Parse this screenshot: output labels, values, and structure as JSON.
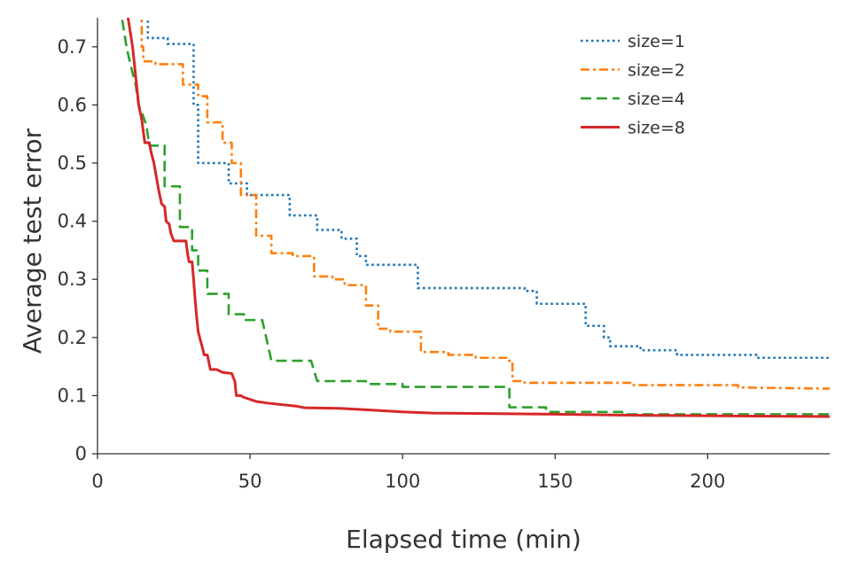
{
  "chart_data": {
    "type": "line",
    "title": "",
    "xlabel": "Elapsed time (min)",
    "ylabel": "Average test error",
    "xlim": [
      0,
      240
    ],
    "ylim": [
      0,
      0.75
    ],
    "xticks": [
      0,
      50,
      100,
      150,
      200
    ],
    "xtick_labels": [
      "0",
      "50",
      "100",
      "150",
      "200"
    ],
    "yticks": [
      0,
      0.1,
      0.2,
      0.3,
      0.4,
      0.5,
      0.6,
      0.7
    ],
    "ytick_labels": [
      "0",
      "0.1",
      "0.2",
      "0.3",
      "0.4",
      "0.5",
      "0.6",
      "0.7"
    ],
    "grid": false,
    "legend_position": "top-right",
    "series": [
      {
        "name": "size=1",
        "color": "#1f77b4",
        "dash": "dotted",
        "points": [
          [
            16.5,
            0.8
          ],
          [
            16.5,
            0.715
          ],
          [
            23,
            0.715
          ],
          [
            23,
            0.705
          ],
          [
            31.5,
            0.705
          ],
          [
            31.5,
            0.6
          ],
          [
            33,
            0.6
          ],
          [
            33,
            0.5
          ],
          [
            43,
            0.5
          ],
          [
            43,
            0.465
          ],
          [
            49,
            0.465
          ],
          [
            49,
            0.445
          ],
          [
            63,
            0.445
          ],
          [
            63,
            0.41
          ],
          [
            72,
            0.41
          ],
          [
            72,
            0.385
          ],
          [
            80,
            0.385
          ],
          [
            80,
            0.37
          ],
          [
            85,
            0.37
          ],
          [
            85,
            0.34
          ],
          [
            88,
            0.34
          ],
          [
            88,
            0.325
          ],
          [
            105,
            0.325
          ],
          [
            105,
            0.285
          ],
          [
            140,
            0.285
          ],
          [
            140,
            0.28
          ],
          [
            144,
            0.28
          ],
          [
            144,
            0.258
          ],
          [
            160,
            0.258
          ],
          [
            160,
            0.22
          ],
          [
            166,
            0.22
          ],
          [
            166,
            0.2
          ],
          [
            168,
            0.2
          ],
          [
            168,
            0.185
          ],
          [
            178,
            0.185
          ],
          [
            178,
            0.178
          ],
          [
            190,
            0.178
          ],
          [
            190,
            0.17
          ],
          [
            216,
            0.17
          ],
          [
            216,
            0.165
          ],
          [
            240,
            0.165
          ]
        ]
      },
      {
        "name": "size=2",
        "color": "#ff7f0e",
        "dash": "dashdot",
        "points": [
          [
            14.5,
            0.8
          ],
          [
            14.5,
            0.7
          ],
          [
            15,
            0.7
          ],
          [
            15,
            0.675
          ],
          [
            19,
            0.675
          ],
          [
            19,
            0.67
          ],
          [
            28,
            0.67
          ],
          [
            28,
            0.635
          ],
          [
            33,
            0.635
          ],
          [
            33,
            0.615
          ],
          [
            36,
            0.615
          ],
          [
            36,
            0.57
          ],
          [
            41,
            0.57
          ],
          [
            41,
            0.535
          ],
          [
            44,
            0.535
          ],
          [
            44,
            0.5
          ],
          [
            47,
            0.5
          ],
          [
            47,
            0.445
          ],
          [
            52,
            0.445
          ],
          [
            52,
            0.375
          ],
          [
            57,
            0.375
          ],
          [
            57,
            0.345
          ],
          [
            64,
            0.345
          ],
          [
            64,
            0.34
          ],
          [
            71,
            0.34
          ],
          [
            71,
            0.305
          ],
          [
            77,
            0.305
          ],
          [
            77,
            0.3
          ],
          [
            81,
            0.3
          ],
          [
            81,
            0.29
          ],
          [
            88,
            0.29
          ],
          [
            88,
            0.255
          ],
          [
            92,
            0.255
          ],
          [
            92,
            0.215
          ],
          [
            96,
            0.215
          ],
          [
            96,
            0.21
          ],
          [
            106,
            0.21
          ],
          [
            106,
            0.175
          ],
          [
            115,
            0.175
          ],
          [
            115,
            0.17
          ],
          [
            124,
            0.17
          ],
          [
            124,
            0.165
          ],
          [
            134,
            0.165
          ],
          [
            134,
            0.16
          ],
          [
            136,
            0.16
          ],
          [
            136,
            0.125
          ],
          [
            140,
            0.125
          ],
          [
            140,
            0.122
          ],
          [
            175,
            0.122
          ],
          [
            175,
            0.118
          ],
          [
            210,
            0.118
          ],
          [
            210,
            0.114
          ],
          [
            240,
            0.112
          ]
        ]
      },
      {
        "name": "size=4",
        "color": "#2ca02c",
        "dash": "dashed",
        "points": [
          [
            6,
            0.8
          ],
          [
            8,
            0.75
          ],
          [
            9.5,
            0.7
          ],
          [
            11,
            0.665
          ],
          [
            12.5,
            0.635
          ],
          [
            13.5,
            0.6
          ],
          [
            15,
            0.58
          ],
          [
            16,
            0.565
          ],
          [
            17,
            0.53
          ],
          [
            22,
            0.53
          ],
          [
            22,
            0.46
          ],
          [
            27,
            0.46
          ],
          [
            27,
            0.39
          ],
          [
            31,
            0.39
          ],
          [
            31,
            0.35
          ],
          [
            33,
            0.35
          ],
          [
            33,
            0.315
          ],
          [
            36,
            0.315
          ],
          [
            36,
            0.275
          ],
          [
            43,
            0.275
          ],
          [
            43,
            0.24
          ],
          [
            48,
            0.24
          ],
          [
            48,
            0.23
          ],
          [
            54,
            0.23
          ],
          [
            57,
            0.16
          ],
          [
            70,
            0.16
          ],
          [
            72,
            0.125
          ],
          [
            88,
            0.125
          ],
          [
            88,
            0.12
          ],
          [
            100,
            0.12
          ],
          [
            100,
            0.115
          ],
          [
            135,
            0.115
          ],
          [
            135,
            0.08
          ],
          [
            147,
            0.08
          ],
          [
            147,
            0.072
          ],
          [
            172,
            0.072
          ],
          [
            172,
            0.068
          ],
          [
            240,
            0.068
          ]
        ]
      },
      {
        "name": "size=8",
        "color": "#d62728",
        "dash": "solid",
        "points": [
          [
            10,
            0.75
          ],
          [
            11.5,
            0.7
          ],
          [
            12.5,
            0.65
          ],
          [
            13.5,
            0.6
          ],
          [
            14.5,
            0.575
          ],
          [
            15.5,
            0.535
          ],
          [
            17,
            0.535
          ],
          [
            17.5,
            0.52
          ],
          [
            18.5,
            0.5
          ],
          [
            19,
            0.485
          ],
          [
            20,
            0.455
          ],
          [
            21,
            0.43
          ],
          [
            22,
            0.425
          ],
          [
            22.5,
            0.4
          ],
          [
            23.5,
            0.395
          ],
          [
            24,
            0.38
          ],
          [
            25,
            0.366
          ],
          [
            29,
            0.366
          ],
          [
            29.5,
            0.345
          ],
          [
            30,
            0.33
          ],
          [
            31,
            0.33
          ],
          [
            31.5,
            0.3
          ],
          [
            32,
            0.265
          ],
          [
            32.5,
            0.235
          ],
          [
            33,
            0.21
          ],
          [
            34,
            0.19
          ],
          [
            35,
            0.17
          ],
          [
            36,
            0.17
          ],
          [
            37,
            0.145
          ],
          [
            39,
            0.145
          ],
          [
            41,
            0.14
          ],
          [
            44,
            0.138
          ],
          [
            45,
            0.125
          ],
          [
            45.5,
            0.1
          ],
          [
            47,
            0.1
          ],
          [
            48,
            0.097
          ],
          [
            52,
            0.09
          ],
          [
            56,
            0.087
          ],
          [
            65,
            0.082
          ],
          [
            68,
            0.079
          ],
          [
            80,
            0.078
          ],
          [
            90,
            0.075
          ],
          [
            100,
            0.072
          ],
          [
            110,
            0.07
          ],
          [
            150,
            0.068
          ],
          [
            180,
            0.066
          ],
          [
            240,
            0.064
          ]
        ]
      }
    ]
  }
}
